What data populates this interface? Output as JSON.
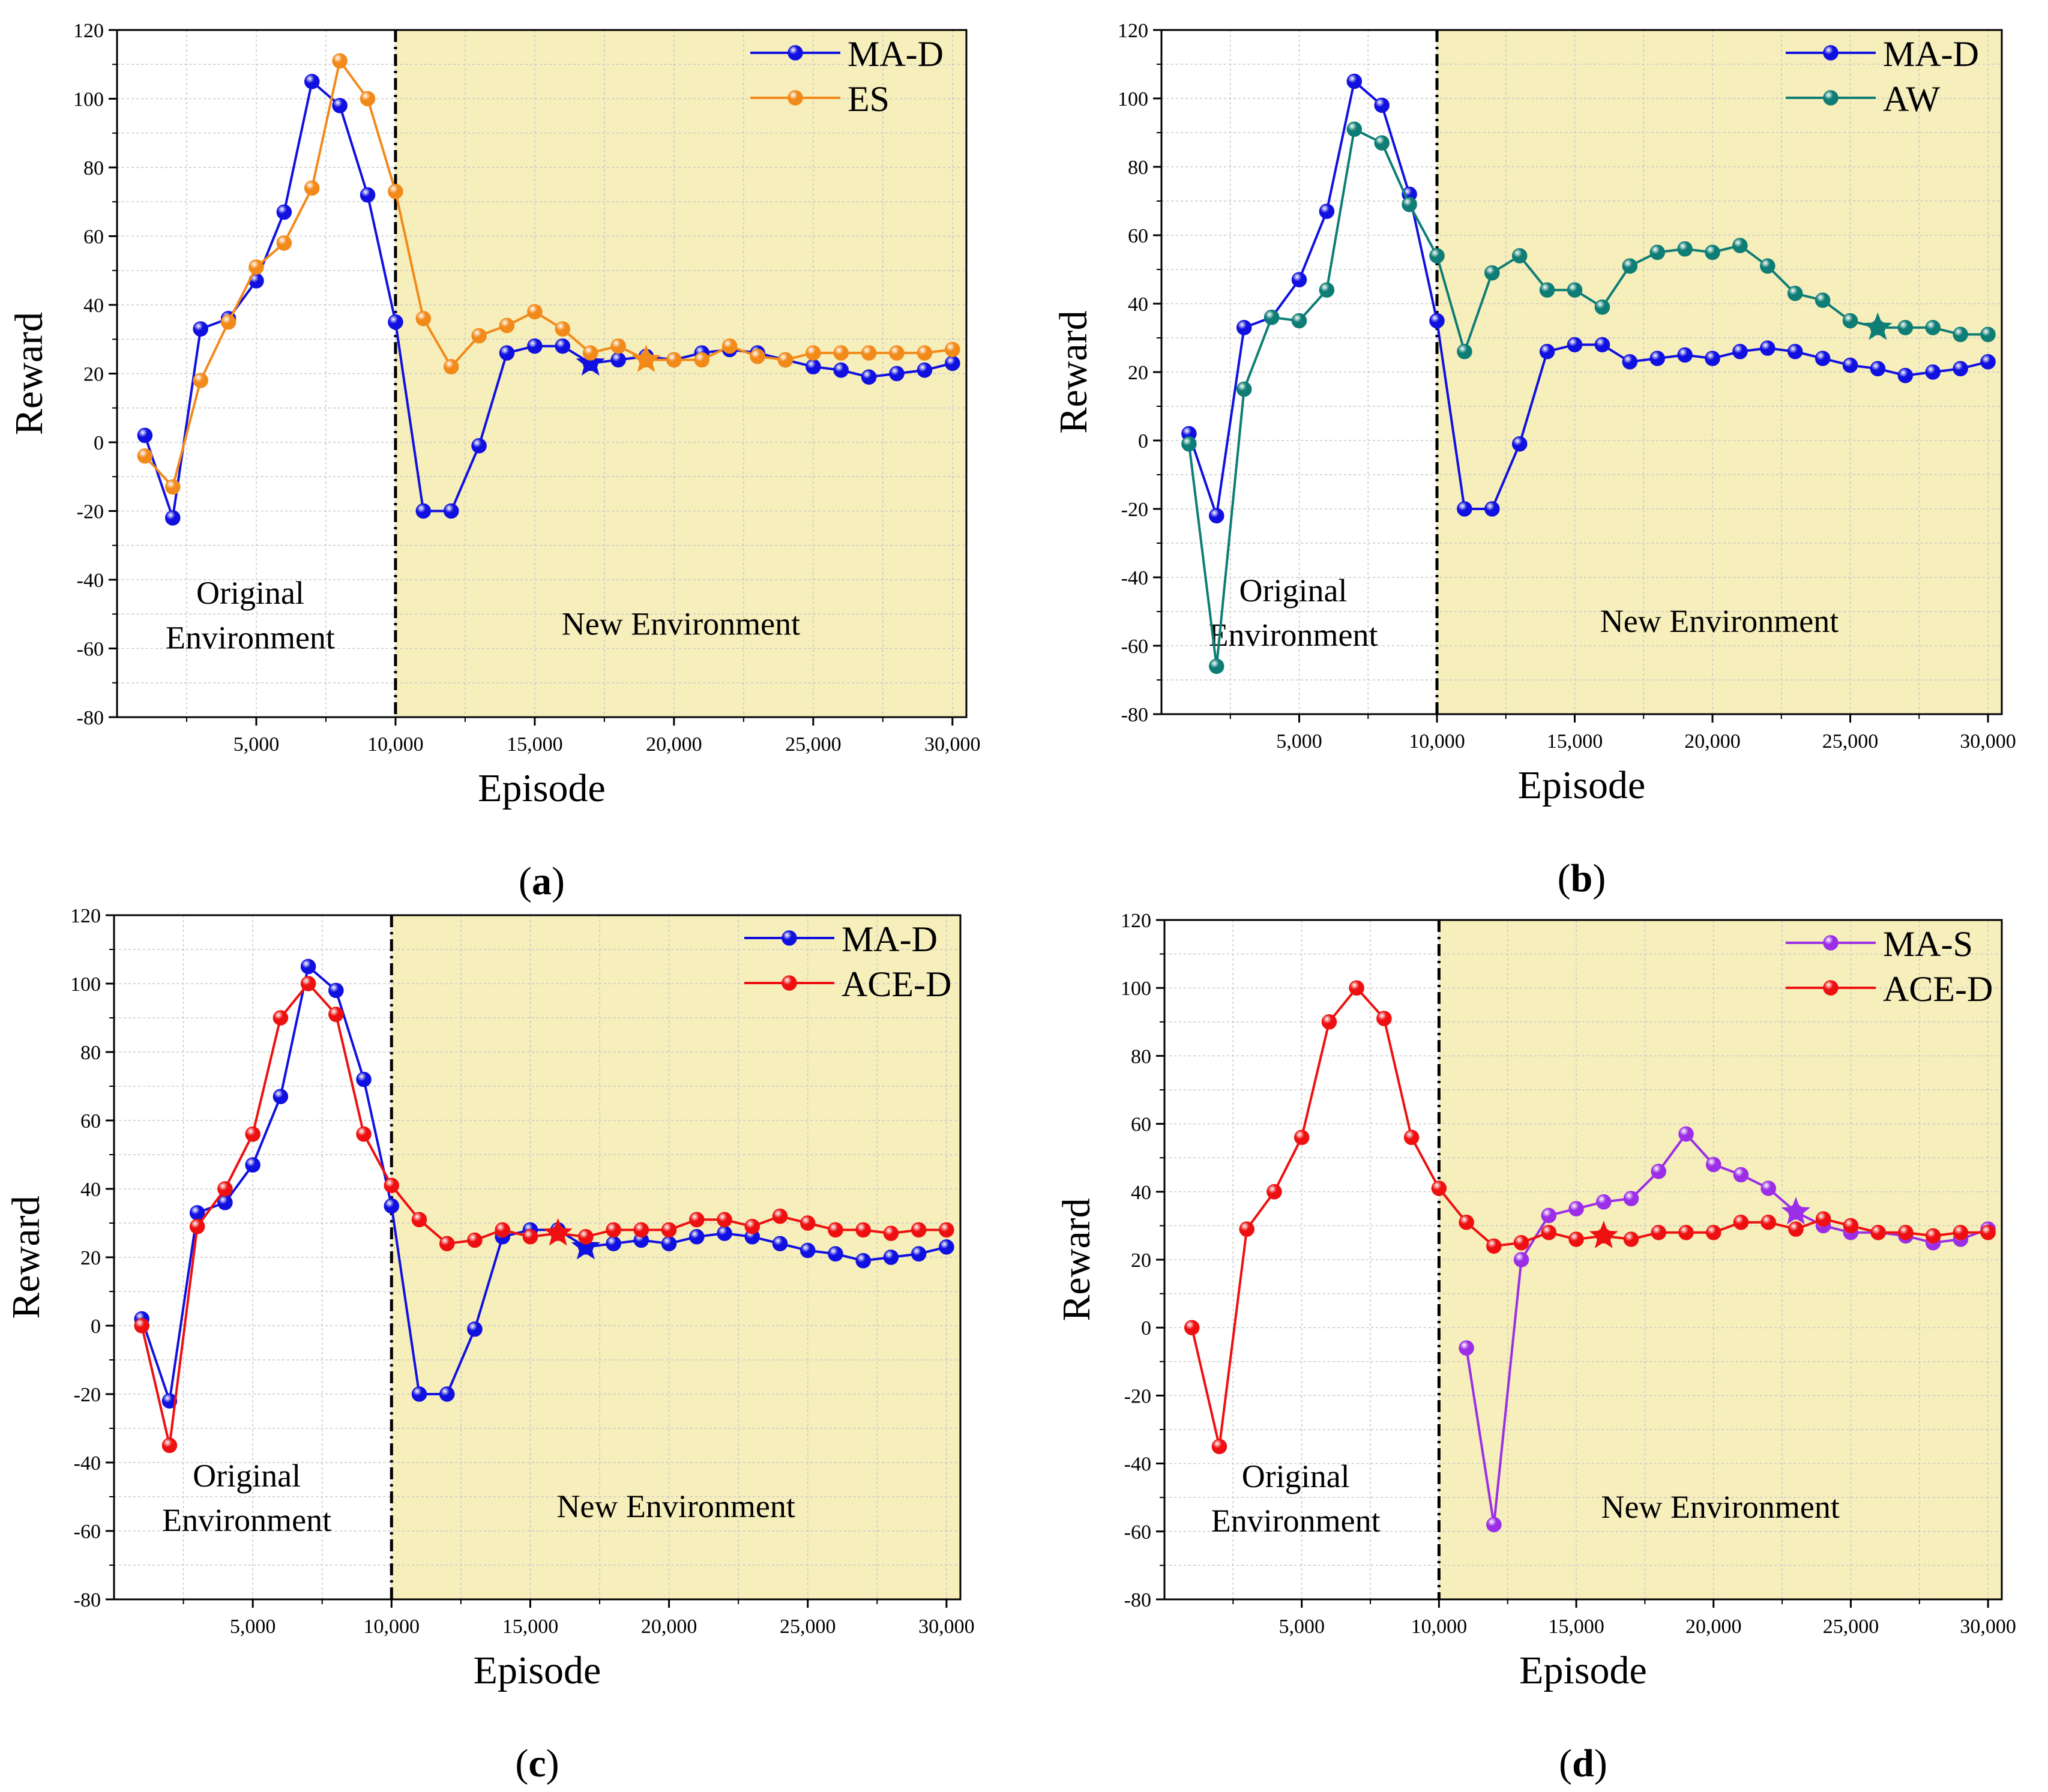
{
  "colors": {
    "MA-D": "#1010e0",
    "ES": "#f28a1a",
    "AW": "#0e7d75",
    "ACE-D": "#ee1010",
    "MA-S": "#9b2ee6",
    "new_env_bg": "#f6eebb"
  },
  "chart_data": [
    {
      "type": "line",
      "panel_label": "a",
      "xlabel": "Episode",
      "ylabel": "Reward",
      "xlim": [
        0,
        30500
      ],
      "ylim": [
        -80,
        120
      ],
      "xticks": [
        5000,
        10000,
        15000,
        20000,
        25000,
        30000
      ],
      "xtick_labels": [
        "5,000",
        "10,000",
        "15,000",
        "20,000",
        "25,000",
        "30,000"
      ],
      "yticks": [
        -80,
        -60,
        -40,
        -20,
        0,
        20,
        40,
        60,
        80,
        100,
        120
      ],
      "grid": true,
      "legend_position": "top-right",
      "divider_x": 10000,
      "regions": {
        "left_label_line1": "Original",
        "left_label_line2": "Environment",
        "right_label": "New Environment"
      },
      "series": [
        {
          "name": "MA-D",
          "color": "#1010e0",
          "x": [
            1000,
            2000,
            3000,
            4000,
            5000,
            6000,
            7000,
            8000,
            9000,
            10000,
            11000,
            12000,
            13000,
            14000,
            15000,
            16000,
            17000,
            18000,
            19000,
            20000,
            21000,
            22000,
            23000,
            24000,
            25000,
            26000,
            27000,
            28000,
            29000,
            30000
          ],
          "y": [
            2,
            -22,
            33,
            36,
            47,
            67,
            105,
            98,
            72,
            35,
            -20,
            -20,
            -1,
            26,
            28,
            28,
            23,
            24,
            25,
            24,
            26,
            27,
            26,
            24,
            22,
            21,
            19,
            20,
            21,
            23
          ],
          "star_x": 17000,
          "star_y": 23
        },
        {
          "name": "ES",
          "color": "#f28a1a",
          "x": [
            1000,
            2000,
            3000,
            4000,
            5000,
            6000,
            7000,
            8000,
            9000,
            10000,
            11000,
            12000,
            13000,
            14000,
            15000,
            16000,
            17000,
            18000,
            19000,
            20000,
            21000,
            22000,
            23000,
            24000,
            25000,
            26000,
            27000,
            28000,
            29000,
            30000
          ],
          "y": [
            -4,
            -13,
            18,
            35,
            51,
            58,
            74,
            111,
            100,
            73,
            36,
            22,
            31,
            34,
            38,
            33,
            26,
            28,
            24,
            24,
            24,
            28,
            25,
            24,
            26,
            26,
            26,
            26,
            26,
            27
          ],
          "star_x": 19000,
          "star_y": 24
        }
      ]
    },
    {
      "type": "line",
      "panel_label": "b",
      "xlabel": "Episode",
      "ylabel": "Reward",
      "xlim": [
        0,
        30500
      ],
      "ylim": [
        -80,
        120
      ],
      "xticks": [
        5000,
        10000,
        15000,
        20000,
        25000,
        30000
      ],
      "xtick_labels": [
        "5,000",
        "10,000",
        "15,000",
        "20,000",
        "25,000",
        "30,000"
      ],
      "yticks": [
        -80,
        -60,
        -40,
        -20,
        0,
        20,
        40,
        60,
        80,
        100,
        120
      ],
      "grid": true,
      "legend_position": "top-right",
      "divider_x": 10000,
      "regions": {
        "left_label_line1": "Original",
        "left_label_line2": "Environment",
        "right_label": "New Environment"
      },
      "series": [
        {
          "name": "MA-D",
          "color": "#1010e0",
          "x": [
            1000,
            2000,
            3000,
            4000,
            5000,
            6000,
            7000,
            8000,
            9000,
            10000,
            11000,
            12000,
            13000,
            14000,
            15000,
            16000,
            17000,
            18000,
            19000,
            20000,
            21000,
            22000,
            23000,
            24000,
            25000,
            26000,
            27000,
            28000,
            29000,
            30000
          ],
          "y": [
            2,
            -22,
            33,
            36,
            47,
            67,
            105,
            98,
            72,
            35,
            -20,
            -20,
            -1,
            26,
            28,
            28,
            23,
            24,
            25,
            24,
            26,
            27,
            26,
            24,
            22,
            21,
            19,
            20,
            21,
            23
          ]
        },
        {
          "name": "AW",
          "color": "#0e7d75",
          "x": [
            1000,
            2000,
            3000,
            4000,
            5000,
            6000,
            7000,
            8000,
            9000,
            10000,
            11000,
            12000,
            13000,
            14000,
            15000,
            16000,
            17000,
            18000,
            19000,
            20000,
            21000,
            22000,
            23000,
            24000,
            25000,
            26000,
            27000,
            28000,
            29000,
            30000
          ],
          "y": [
            -1,
            -66,
            15,
            36,
            35,
            44,
            91,
            87,
            69,
            54,
            26,
            49,
            54,
            44,
            44,
            39,
            51,
            55,
            56,
            55,
            57,
            51,
            43,
            41,
            35,
            33,
            33,
            33,
            31,
            31
          ],
          "star_x": 26000,
          "star_y": 33
        }
      ]
    },
    {
      "type": "line",
      "panel_label": "c",
      "xlabel": "Episode",
      "ylabel": "Reward",
      "xlim": [
        0,
        30500
      ],
      "ylim": [
        -80,
        120
      ],
      "xticks": [
        5000,
        10000,
        15000,
        20000,
        25000,
        30000
      ],
      "xtick_labels": [
        "5,000",
        "10,000",
        "15,000",
        "20,000",
        "25,000",
        "30,000"
      ],
      "yticks": [
        -80,
        -60,
        -40,
        -20,
        0,
        20,
        40,
        60,
        80,
        100,
        120
      ],
      "grid": true,
      "legend_position": "top-right",
      "divider_x": 10000,
      "regions": {
        "left_label_line1": "Original",
        "left_label_line2": "Environment",
        "right_label": "New Environment"
      },
      "series": [
        {
          "name": "MA-D",
          "color": "#1010e0",
          "x": [
            1000,
            2000,
            3000,
            4000,
            5000,
            6000,
            7000,
            8000,
            9000,
            10000,
            11000,
            12000,
            13000,
            14000,
            15000,
            16000,
            17000,
            18000,
            19000,
            20000,
            21000,
            22000,
            23000,
            24000,
            25000,
            26000,
            27000,
            28000,
            29000,
            30000
          ],
          "y": [
            2,
            -22,
            33,
            36,
            47,
            67,
            105,
            98,
            72,
            35,
            -20,
            -20,
            -1,
            26,
            28,
            28,
            23,
            24,
            25,
            24,
            26,
            27,
            26,
            24,
            22,
            21,
            19,
            20,
            21,
            23
          ],
          "star_x": 17000,
          "star_y": 23
        },
        {
          "name": "ACE-D",
          "color": "#ee1010",
          "x": [
            1000,
            2000,
            3000,
            4000,
            5000,
            6000,
            7000,
            8000,
            9000,
            10000,
            11000,
            12000,
            13000,
            14000,
            15000,
            16000,
            17000,
            18000,
            19000,
            20000,
            21000,
            22000,
            23000,
            24000,
            25000,
            26000,
            27000,
            28000,
            29000,
            30000
          ],
          "y": [
            0,
            -35,
            29,
            40,
            56,
            90,
            100,
            91,
            56,
            41,
            31,
            24,
            25,
            28,
            26,
            27,
            26,
            28,
            28,
            28,
            31,
            31,
            29,
            32,
            30,
            28,
            28,
            27,
            28,
            28
          ],
          "star_x": 16000,
          "star_y": 27
        }
      ]
    },
    {
      "type": "line",
      "panel_label": "d",
      "xlabel": "Episode",
      "ylabel": "Reward",
      "xlim": [
        0,
        30500
      ],
      "ylim": [
        -80,
        120
      ],
      "xticks": [
        5000,
        10000,
        15000,
        20000,
        25000,
        30000
      ],
      "xtick_labels": [
        "5,000",
        "10,000",
        "15,000",
        "20,000",
        "25,000",
        "30,000"
      ],
      "yticks": [
        -80,
        -60,
        -40,
        -20,
        0,
        20,
        40,
        60,
        80,
        100,
        120
      ],
      "grid": true,
      "legend_position": "top-right",
      "divider_x": 10000,
      "regions": {
        "left_label_line1": "Original",
        "left_label_line2": "Environment",
        "right_label": "New Environment"
      },
      "series": [
        {
          "name": "MA-S",
          "color": "#9b2ee6",
          "x": [
            11000,
            12000,
            13000,
            14000,
            15000,
            16000,
            17000,
            18000,
            19000,
            20000,
            21000,
            22000,
            23000,
            24000,
            25000,
            26000,
            27000,
            28000,
            29000,
            30000
          ],
          "y": [
            -6,
            -58,
            20,
            33,
            35,
            37,
            38,
            46,
            57,
            48,
            45,
            41,
            34,
            30,
            28,
            28,
            27,
            25,
            26,
            29
          ],
          "star_x": 23000,
          "star_y": 34
        },
        {
          "name": "ACE-D",
          "color": "#ee1010",
          "x": [
            1000,
            2000,
            3000,
            4000,
            5000,
            6000,
            7000,
            8000,
            9000,
            10000,
            11000,
            12000,
            13000,
            14000,
            15000,
            16000,
            17000,
            18000,
            19000,
            20000,
            21000,
            22000,
            23000,
            24000,
            25000,
            26000,
            27000,
            28000,
            29000,
            30000
          ],
          "y": [
            0,
            -35,
            29,
            40,
            56,
            90,
            100,
            91,
            56,
            41,
            31,
            24,
            25,
            28,
            26,
            27,
            26,
            28,
            28,
            28,
            31,
            31,
            29,
            32,
            30,
            28,
            28,
            27,
            28,
            28
          ],
          "star_x": 16000,
          "star_y": 27
        }
      ]
    }
  ]
}
